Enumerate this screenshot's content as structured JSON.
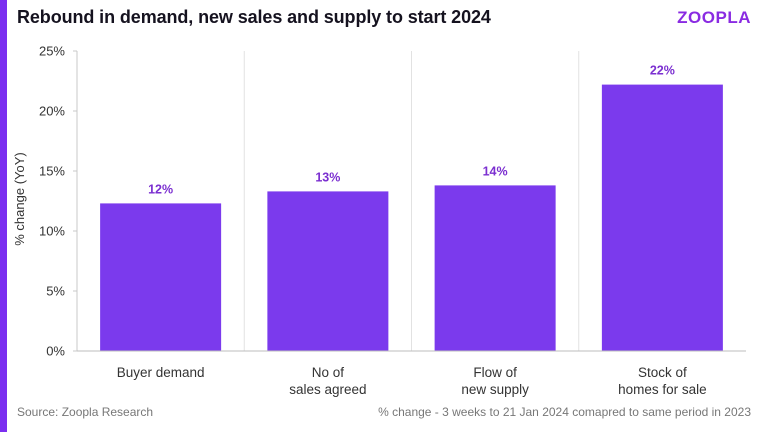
{
  "title": "Rebound in demand, new sales and supply to start 2024",
  "brand": "ZOOPLA",
  "footer": {
    "source": "Source: Zoopla Research",
    "note": "% change - 3 weeks to 21 Jan 2024 comapred to same period in 2023"
  },
  "colors": {
    "accent": "#7b2ff0",
    "bar": "#7b3aed",
    "data_label": "#7b2fd0",
    "grid": "#e2e2e2"
  },
  "chart_data": {
    "type": "bar",
    "categories": [
      [
        "Buyer demand"
      ],
      [
        "No of",
        "sales agreed"
      ],
      [
        "Flow of",
        "new supply"
      ],
      [
        "Stock of",
        "homes for sale"
      ]
    ],
    "values": [
      12.3,
      13.3,
      13.8,
      22.2
    ],
    "data_labels": [
      "12%",
      "13%",
      "14%",
      "22%"
    ],
    "ylabel": "% change (YoY)",
    "ylim": [
      0,
      25
    ],
    "yticks": [
      0,
      5,
      10,
      15,
      20,
      25
    ],
    "ytick_labels": [
      "0%",
      "5%",
      "10%",
      "15%",
      "20%",
      "25%"
    ],
    "grid": "vertical-separators"
  }
}
